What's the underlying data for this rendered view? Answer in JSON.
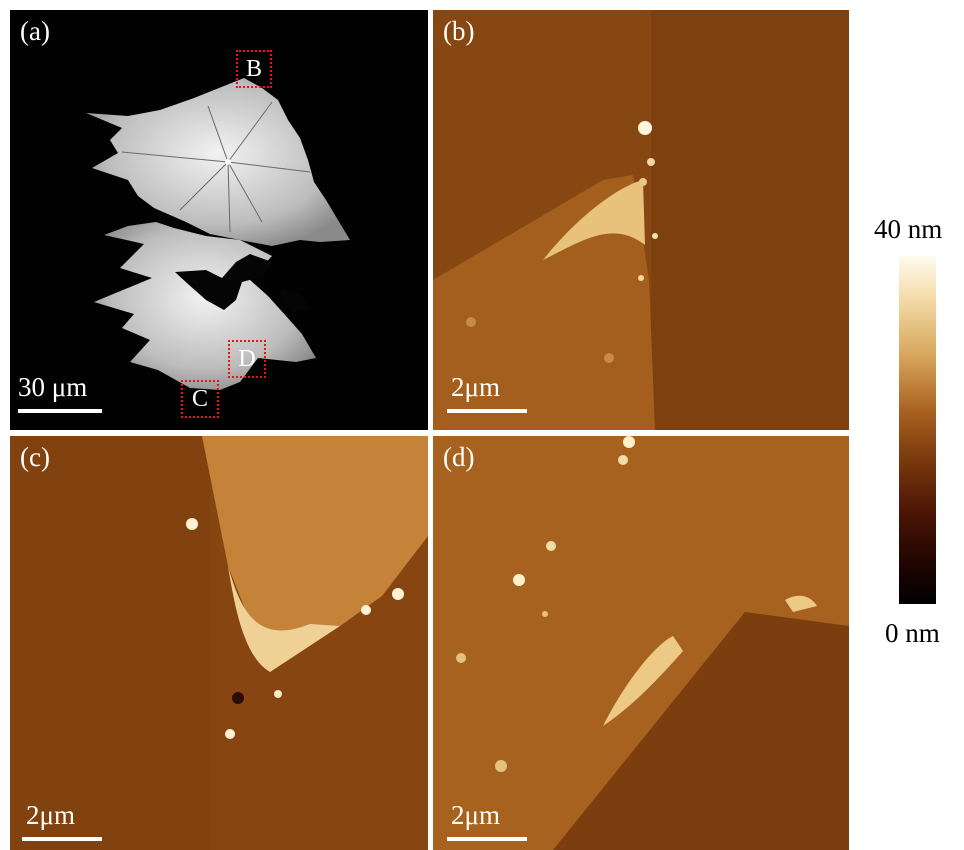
{
  "panels": {
    "a": {
      "label": "(a)",
      "scale": "30 μm",
      "boxes": [
        "B",
        "C",
        "D"
      ]
    },
    "b": {
      "label": "(b)",
      "scale": "2μm"
    },
    "c": {
      "label": "(c)",
      "scale": "2μm"
    },
    "d": {
      "label": "(d)",
      "scale": "2μm"
    }
  },
  "colorbar": {
    "max_label": "40 nm",
    "min_label": "0 nm"
  },
  "colors": {
    "box_outline": "#e11111",
    "afm_base": "#8a4a12",
    "afm_flake": "#c98a3a"
  }
}
